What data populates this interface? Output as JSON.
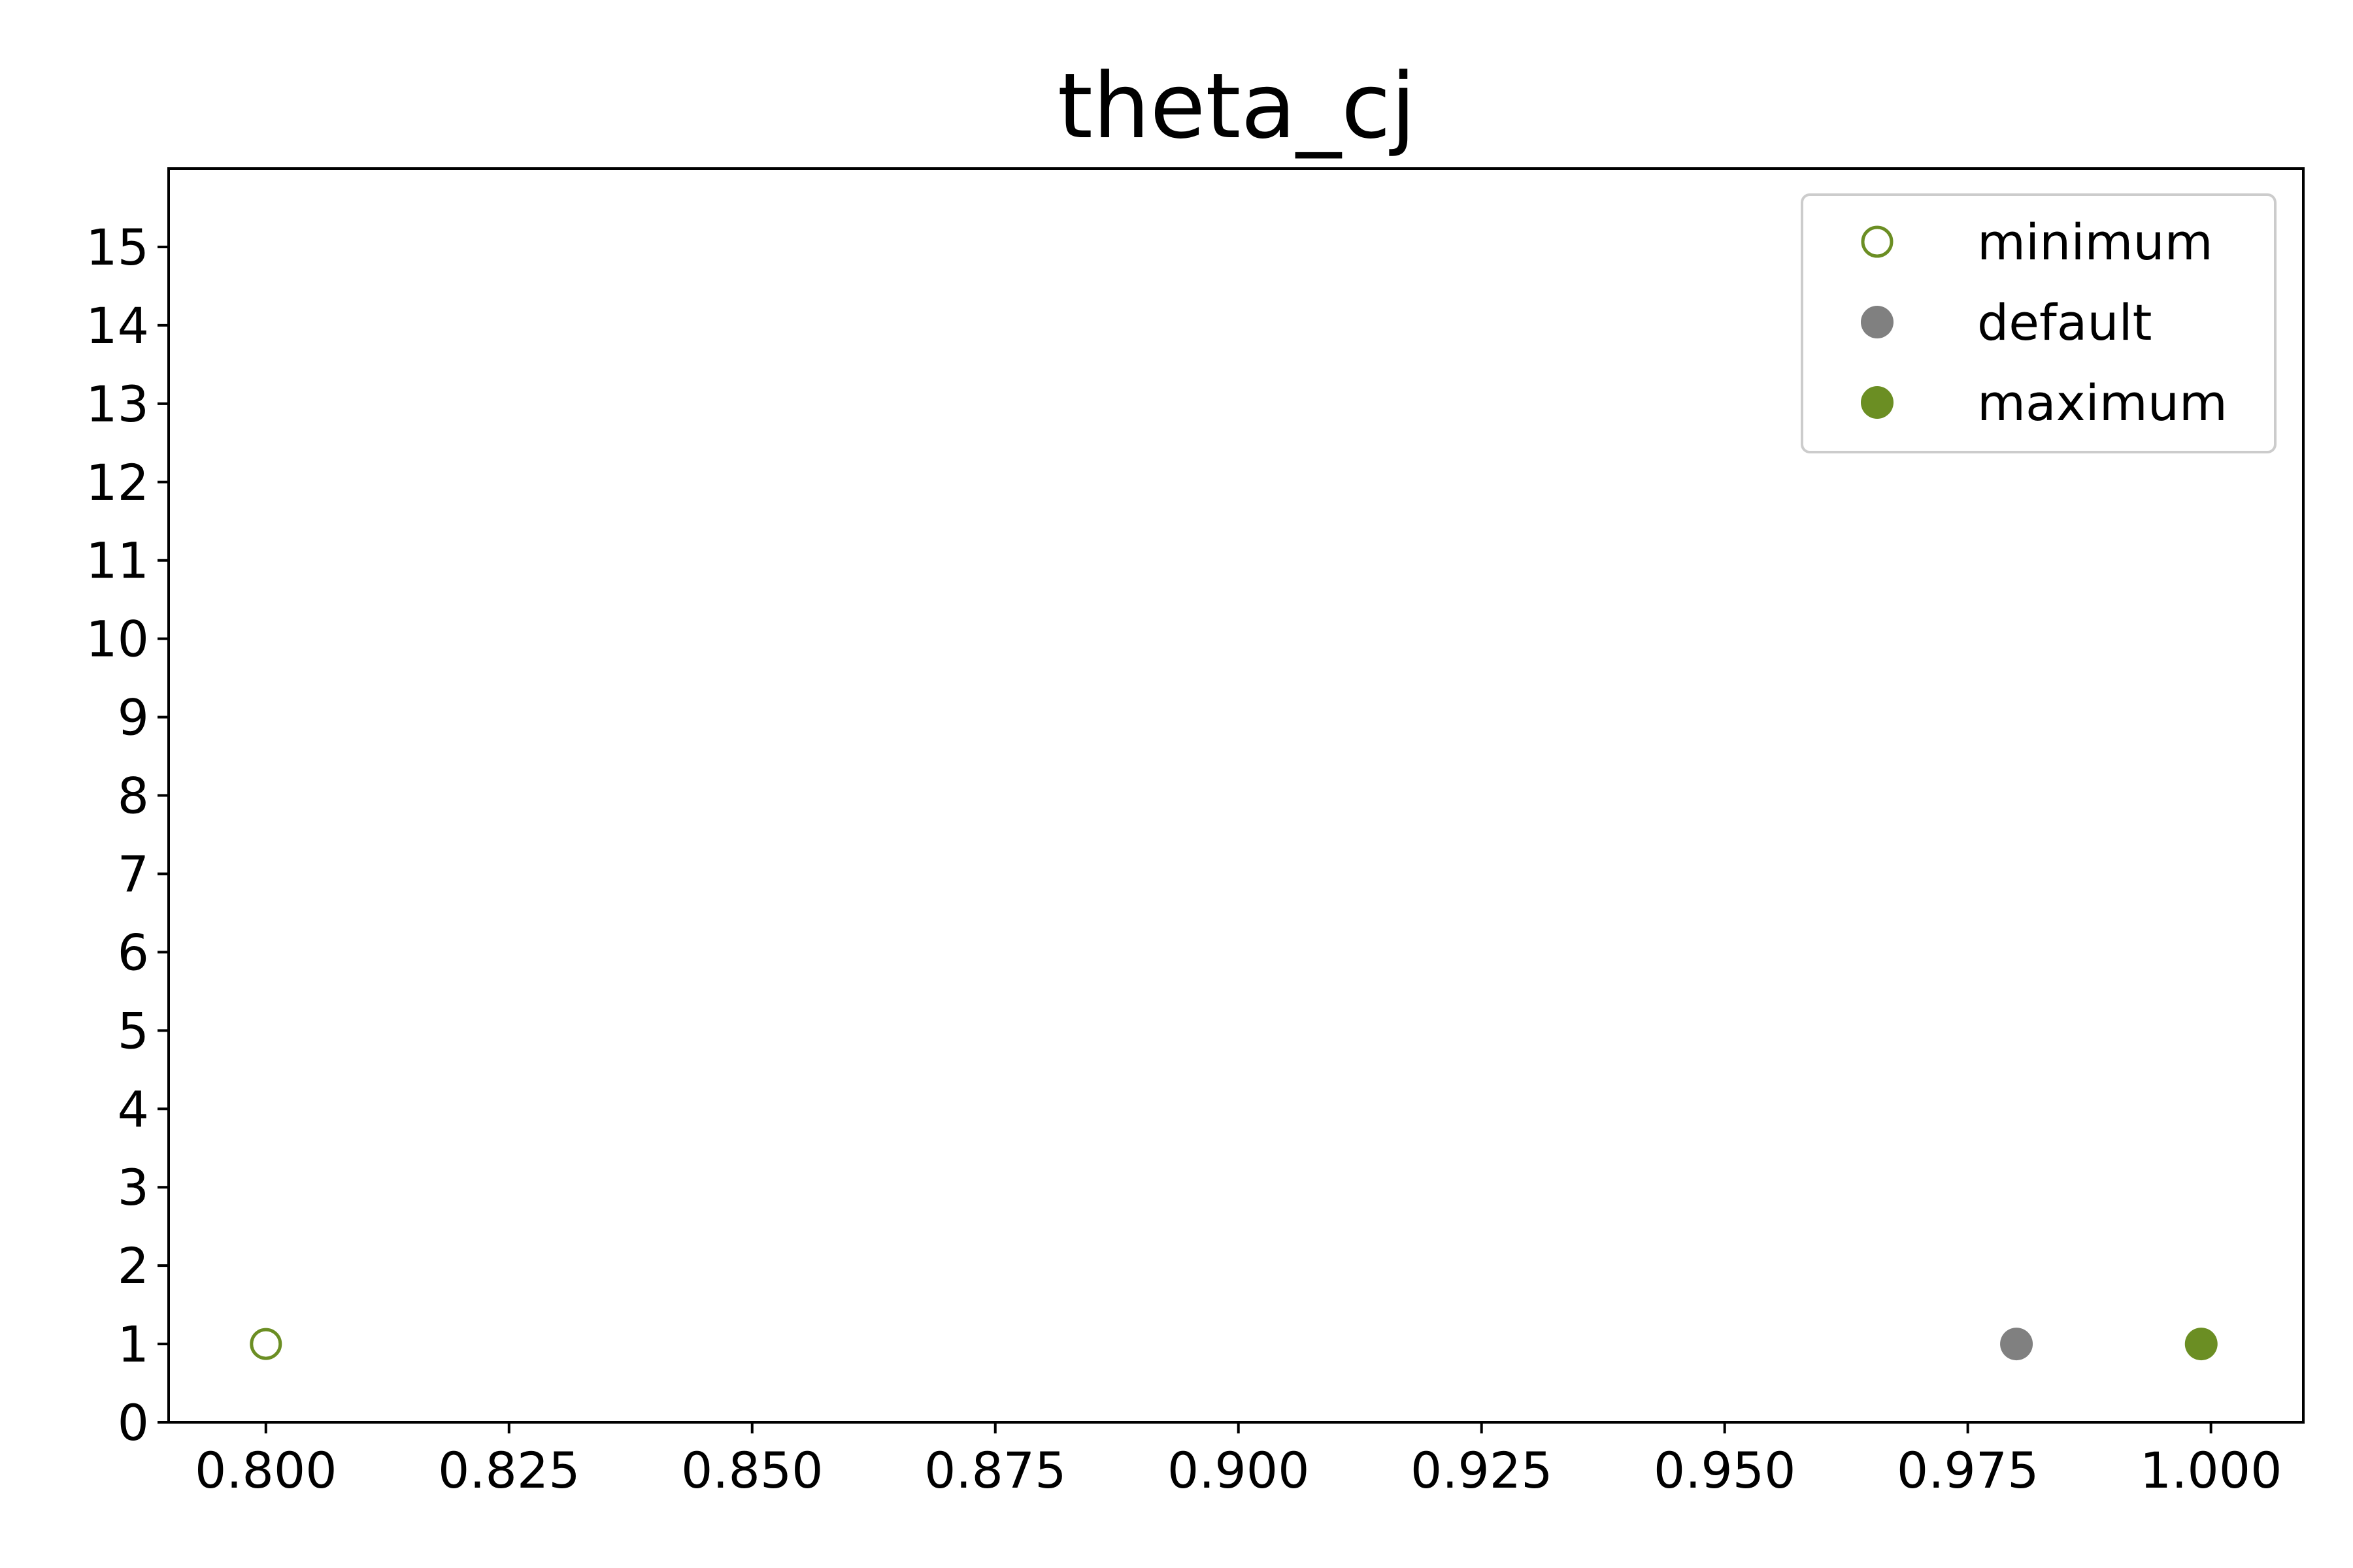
{
  "chart_data": {
    "type": "scatter",
    "title": "theta_cj",
    "xlabel": "",
    "ylabel": "",
    "xlim": [
      0.79,
      1.0095
    ],
    "ylim": [
      0,
      16
    ],
    "x_ticks": [
      "0.800",
      "0.825",
      "0.850",
      "0.875",
      "0.900",
      "0.925",
      "0.950",
      "0.975",
      "1.000"
    ],
    "y_ticks": [
      "0",
      "1",
      "2",
      "3",
      "4",
      "5",
      "6",
      "7",
      "8",
      "9",
      "10",
      "11",
      "12",
      "13",
      "14",
      "15"
    ],
    "grid": false,
    "legend_position": "top-right",
    "series": [
      {
        "name": "minimum",
        "marker": "hollow-circle",
        "color": "#6b8e23",
        "points": [
          {
            "x": 0.8,
            "y": 1
          }
        ]
      },
      {
        "name": "default",
        "marker": "filled-circle",
        "color": "#808080",
        "points": [
          {
            "x": 0.98,
            "y": 1
          }
        ]
      },
      {
        "name": "maximum",
        "marker": "filled-circle",
        "color": "#6b8e23",
        "points": [
          {
            "x": 0.999,
            "y": 1
          }
        ]
      }
    ]
  }
}
